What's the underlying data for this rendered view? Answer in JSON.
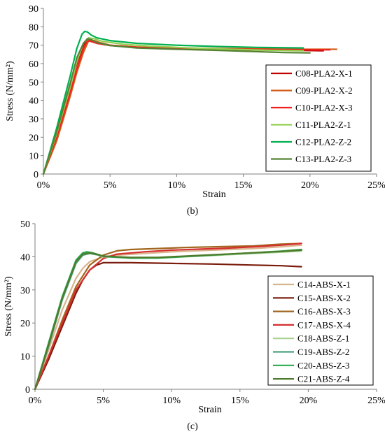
{
  "chart_data": [
    {
      "type": "line",
      "caption": "(b)",
      "xlabel": "Strain",
      "ylabel": "Stress (N/mm²)",
      "xlim": [
        0,
        0.25
      ],
      "ylim": [
        0,
        90
      ],
      "x_ticks": [
        0,
        0.05,
        0.1,
        0.15,
        0.2,
        0.25
      ],
      "x_tick_labels": [
        "0%",
        "5%",
        "10%",
        "15%",
        "20%",
        "25%"
      ],
      "y_ticks": [
        0,
        10,
        20,
        30,
        40,
        50,
        60,
        70,
        80,
        90
      ],
      "y_tick_labels": [
        "0",
        "10",
        "20",
        "30",
        "40",
        "50",
        "60",
        "70",
        "80",
        "90"
      ],
      "grid": false,
      "legend_position": "right",
      "series": [
        {
          "name": "C08-PLA2-X-1",
          "color": "#c00000",
          "x": [
            0,
            0.005,
            0.01,
            0.015,
            0.02,
            0.025,
            0.03,
            0.033,
            0.036,
            0.04,
            0.05,
            0.07,
            0.1,
            0.13,
            0.16,
            0.19,
            0.21
          ],
          "y": [
            0,
            10,
            22,
            35,
            48,
            60,
            70,
            73.5,
            73,
            71.5,
            70,
            69,
            68.3,
            67.8,
            67.4,
            67.2,
            67
          ]
        },
        {
          "name": "C09-PLA2-X-2",
          "color": "#d35f1a",
          "x": [
            0,
            0.01,
            0.02,
            0.025,
            0.03,
            0.034,
            0.038,
            0.042,
            0.05,
            0.07,
            0.1,
            0.13,
            0.16,
            0.19,
            0.22
          ],
          "y": [
            0,
            18,
            42,
            55,
            66,
            72.5,
            72.5,
            71.5,
            70,
            69,
            68.5,
            68.2,
            68,
            67.8,
            67.8
          ]
        },
        {
          "name": "C10-PLA2-X-3",
          "color": "#f02020",
          "x": [
            0,
            0.01,
            0.02,
            0.025,
            0.03,
            0.033,
            0.036,
            0.04,
            0.05,
            0.07,
            0.1,
            0.13,
            0.16,
            0.19,
            0.215
          ],
          "y": [
            0,
            20,
            44,
            57,
            68,
            72.5,
            72,
            71,
            69.8,
            68.8,
            68.2,
            67.9,
            67.7,
            67.6,
            67.5
          ]
        },
        {
          "name": "C11-PLA2-Z-1",
          "color": "#92d050",
          "x": [
            0,
            0.01,
            0.02,
            0.025,
            0.03,
            0.034,
            0.038,
            0.045,
            0.06,
            0.08,
            0.11,
            0.14,
            0.17,
            0.195
          ],
          "y": [
            0,
            22,
            47,
            61,
            71,
            74,
            73.5,
            72,
            70.5,
            69.5,
            68.5,
            67.8,
            67.2,
            67
          ]
        },
        {
          "name": "C12-PLA2-Z-2",
          "color": "#00b050",
          "x": [
            0,
            0.01,
            0.02,
            0.025,
            0.029,
            0.031,
            0.033,
            0.036,
            0.04,
            0.05,
            0.07,
            0.1,
            0.13,
            0.16,
            0.195
          ],
          "y": [
            0,
            25,
            53,
            68,
            76,
            77.5,
            77.2,
            75.5,
            74,
            72.5,
            71,
            70,
            69.3,
            68.8,
            68.5
          ]
        },
        {
          "name": "C13-PLA2-Z-3",
          "color": "#548235",
          "x": [
            0,
            0.01,
            0.02,
            0.025,
            0.03,
            0.033,
            0.036,
            0.04,
            0.05,
            0.07,
            0.1,
            0.13,
            0.16,
            0.18,
            0.2
          ],
          "y": [
            0,
            23,
            49,
            63,
            71,
            73.5,
            73,
            71.5,
            69.8,
            68.5,
            67.8,
            67.2,
            66.5,
            66,
            65.8
          ]
        }
      ]
    },
    {
      "type": "line",
      "caption": "(c)",
      "xlabel": "Strain",
      "ylabel": "Stress (N/mm²)",
      "xlim": [
        0,
        0.25
      ],
      "ylim": [
        0,
        50
      ],
      "x_ticks": [
        0,
        0.05,
        0.1,
        0.15,
        0.2,
        0.25
      ],
      "x_tick_labels": [
        "0%",
        "5%",
        "10%",
        "15%",
        "20%",
        "25%"
      ],
      "y_ticks": [
        0,
        10,
        20,
        30,
        40,
        50
      ],
      "y_tick_labels": [
        "0",
        "10",
        "20",
        "30",
        "40",
        "50"
      ],
      "grid": false,
      "legend_position": "right",
      "series": [
        {
          "name": "C14-ABS-X-1",
          "color": "#d9b38c",
          "x": [
            0,
            0.005,
            0.01,
            0.02,
            0.03,
            0.035,
            0.04,
            0.05,
            0.06,
            0.08,
            0.1,
            0.13,
            0.16,
            0.18,
            0.195
          ],
          "y": [
            0,
            6,
            12,
            24,
            33.5,
            36.5,
            38.5,
            40,
            40.5,
            41,
            41.5,
            42,
            42.5,
            43,
            43.5
          ]
        },
        {
          "name": "C15-ABS-X-2",
          "color": "#7b1c0c",
          "x": [
            0,
            0.01,
            0.02,
            0.03,
            0.035,
            0.04,
            0.045,
            0.05,
            0.07,
            0.1,
            0.13,
            0.16,
            0.18,
            0.195
          ],
          "y": [
            0,
            9,
            19,
            29,
            33,
            36,
            37.5,
            38.2,
            38.2,
            38,
            37.8,
            37.5,
            37.3,
            37
          ]
        },
        {
          "name": "C16-ABS-X-3",
          "color": "#a0661e",
          "x": [
            0,
            0.01,
            0.02,
            0.03,
            0.04,
            0.05,
            0.06,
            0.07,
            0.09,
            0.11,
            0.13,
            0.16,
            0.18,
            0.195
          ],
          "y": [
            0,
            10,
            21,
            31,
            37.5,
            40.5,
            41.8,
            42.2,
            42.5,
            42.8,
            43,
            43.3,
            43.8,
            44
          ]
        },
        {
          "name": "C17-ABS-X-4",
          "color": "#d62e2e",
          "x": [
            0,
            0.01,
            0.02,
            0.03,
            0.04,
            0.05,
            0.06,
            0.08,
            0.1,
            0.12,
            0.14,
            0.16,
            0.18,
            0.195
          ],
          "y": [
            0,
            10,
            20,
            30,
            36,
            39.5,
            40.8,
            41.5,
            42,
            42.3,
            42.6,
            43,
            43.5,
            44
          ]
        },
        {
          "name": "C18-ABS-Z-1",
          "color": "#a9d18e",
          "x": [
            0,
            0.01,
            0.02,
            0.03,
            0.035,
            0.04,
            0.045,
            0.05,
            0.07,
            0.09,
            0.12,
            0.15,
            0.18,
            0.195
          ],
          "y": [
            0,
            14,
            28,
            38.5,
            40.8,
            41,
            40.6,
            40,
            39.6,
            39.6,
            40.2,
            40.8,
            41.4,
            41.7
          ]
        },
        {
          "name": "C19-ABS-Z-2",
          "color": "#4aa37f",
          "x": [
            0,
            0.01,
            0.02,
            0.03,
            0.035,
            0.04,
            0.045,
            0.05,
            0.07,
            0.09,
            0.12,
            0.15,
            0.18,
            0.195
          ],
          "y": [
            0,
            13,
            27,
            38,
            40.5,
            41,
            40.7,
            40.1,
            39.6,
            39.7,
            40.3,
            41,
            41.6,
            42
          ]
        },
        {
          "name": "C20-ABS-Z-3",
          "color": "#2daa50",
          "x": [
            0,
            0.01,
            0.02,
            0.03,
            0.035,
            0.038,
            0.042,
            0.05,
            0.07,
            0.09,
            0.12,
            0.15,
            0.18,
            0.195
          ],
          "y": [
            0,
            14,
            28,
            39,
            41.2,
            41.5,
            41.2,
            40.2,
            39.6,
            39.6,
            40.3,
            41,
            41.7,
            42.2
          ]
        },
        {
          "name": "C21-ABS-Z-4",
          "color": "#4e7a2b",
          "x": [
            0,
            0.01,
            0.02,
            0.03,
            0.035,
            0.04,
            0.045,
            0.05,
            0.07,
            0.09,
            0.12,
            0.15,
            0.18,
            0.195
          ],
          "y": [
            0,
            13.5,
            27.5,
            38.5,
            40.8,
            41.2,
            40.8,
            40.2,
            39.8,
            39.8,
            40.4,
            41,
            41.6,
            42
          ]
        }
      ]
    }
  ]
}
